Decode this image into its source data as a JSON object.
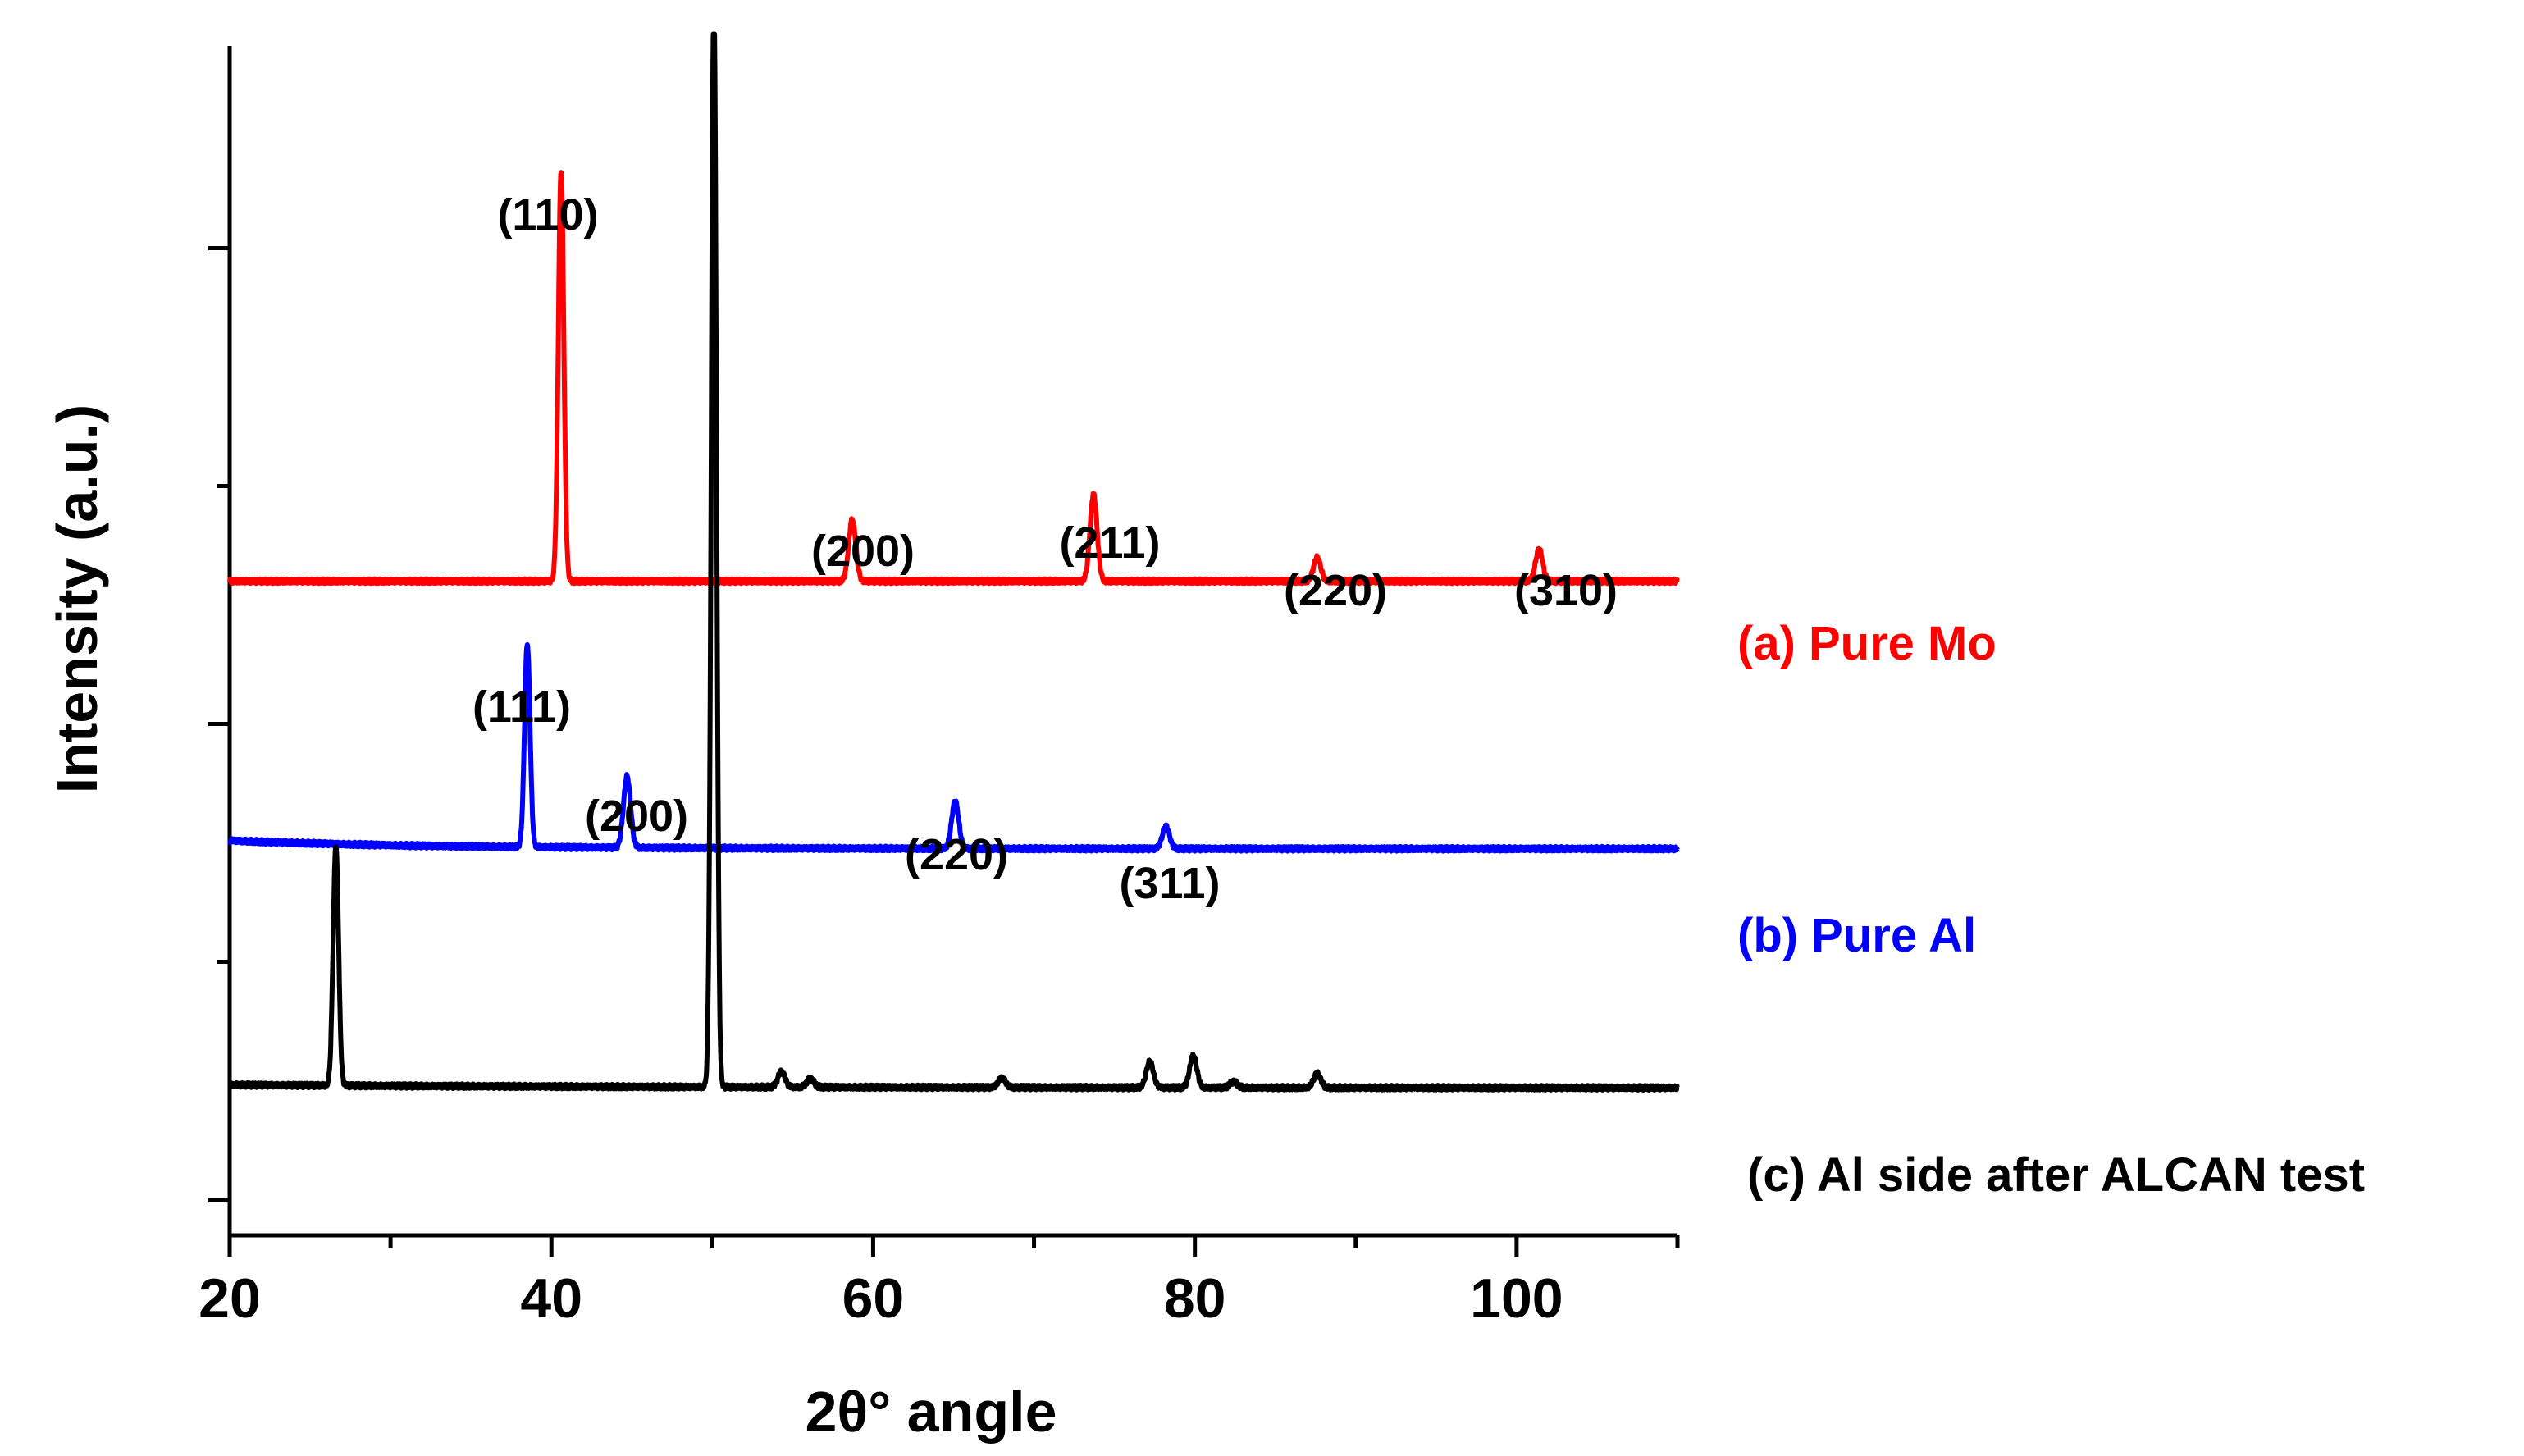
{
  "chart_data": {
    "type": "line",
    "title": "",
    "xlabel": "2θ° angle",
    "ylabel": "Intensity (a.u.)",
    "xlim": [
      20,
      110
    ],
    "ylim": [
      0,
      100
    ],
    "x_ticks": [
      20,
      40,
      60,
      80,
      100
    ],
    "x_tick_labels": [
      "20",
      "40",
      "60",
      "80",
      "100"
    ],
    "grid": false,
    "colors": {
      "pure_mo": "#ff0000",
      "pure_al": "#0000ff",
      "al_side": "#000000"
    },
    "series": [
      {
        "name": "(a) Pure Mo",
        "color": "#ff0000",
        "baseline": 55,
        "peaks": [
          {
            "x": 40.6,
            "height": 34.5,
            "label": "(110)"
          },
          {
            "x": 58.7,
            "height": 5.2,
            "label": "(200)"
          },
          {
            "x": 73.7,
            "height": 7.3,
            "label": "(211)"
          },
          {
            "x": 87.6,
            "height": 2.0,
            "label": "(220)"
          },
          {
            "x": 101.4,
            "height": 2.7,
            "label": "(310)"
          }
        ]
      },
      {
        "name": "(b) Pure Al",
        "color": "#0000ff",
        "baseline": 32.5,
        "peaks": [
          {
            "x": 38.5,
            "height": 17.1,
            "label": "(111)"
          },
          {
            "x": 44.7,
            "height": 6.0,
            "label": "(200)"
          },
          {
            "x": 65.1,
            "height": 4.0,
            "label": "(220)"
          },
          {
            "x": 78.2,
            "height": 1.9,
            "label": "(311)"
          }
        ]
      },
      {
        "name": "(c) Al side after ALCAN test",
        "color": "#000000",
        "baseline": 12.4,
        "peaks": [
          {
            "x": 26.6,
            "height": 20.2,
            "label": ""
          },
          {
            "x": 50.1,
            "height": 92.0,
            "label": ""
          },
          {
            "x": 54.3,
            "height": 1.3,
            "label": ""
          },
          {
            "x": 56.1,
            "height": 0.7,
            "label": ""
          },
          {
            "x": 68.0,
            "height": 0.8,
            "label": ""
          },
          {
            "x": 77.2,
            "height": 2.2,
            "label": ""
          },
          {
            "x": 79.9,
            "height": 2.7,
            "label": ""
          },
          {
            "x": 82.4,
            "height": 0.5,
            "label": ""
          },
          {
            "x": 87.6,
            "height": 1.2,
            "label": ""
          }
        ]
      }
    ]
  }
}
